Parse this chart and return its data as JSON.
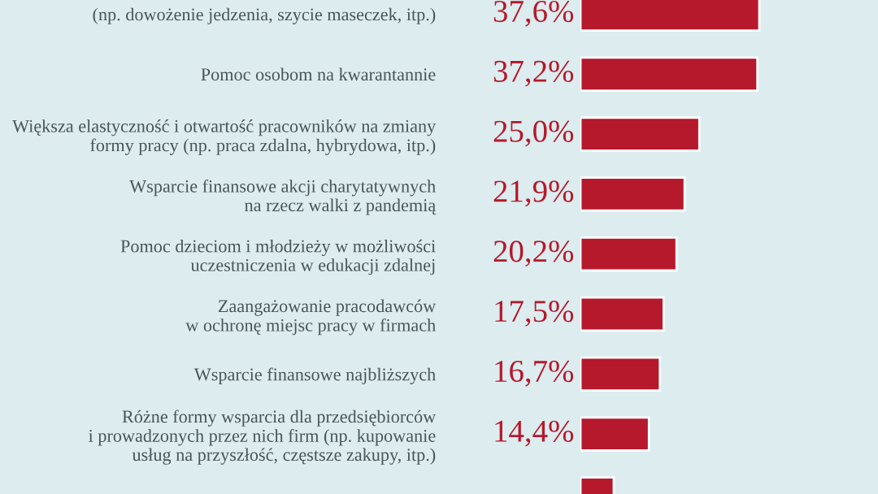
{
  "chart_data": {
    "type": "bar",
    "orientation": "horizontal",
    "categories": [
      "(np. dowożenie jedzenia, szycie maseczek, itp.)",
      "Pomoc osobom na kwarantannie",
      "Większa elastyczność i otwartość pracowników na zmiany\nformy pracy (np. praca zdalna, hybrydowa, itp.)",
      "Wsparcie finansowe akcji charytatywnych\nna rzecz walki z pandemią",
      "Pomoc dzieciom i młodzieży w możliwości\nuczestniczenia w edukacji zdalnej",
      "Zaangażowanie pracodawców\nw ochronę miejsc pracy w firmach",
      "Wsparcie finansowe najbliższych",
      "Różne formy wsparcia dla przedsiębiorców\ni prowadzonych przez nich firm (np. kupowanie\nusług na przyszłość, częstsze zakupy, itp.)",
      null
    ],
    "values": [
      37.6,
      37.2,
      25.0,
      21.9,
      20.2,
      17.5,
      16.7,
      14.4,
      7.0
    ],
    "value_labels": [
      "37,6%",
      "37,2%",
      "25,0%",
      "21,9%",
      "20,2%",
      "17,5%",
      "16,7%",
      "14,4%",
      null
    ],
    "color": "#b5192b",
    "tick_labels": "y"
  }
}
